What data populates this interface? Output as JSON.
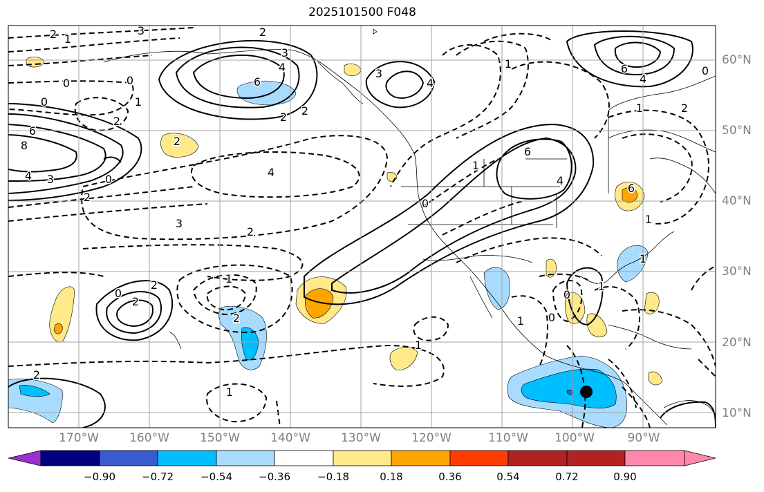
{
  "title": "2025101500 F048",
  "lat_labels": [
    "60°N",
    "50°N",
    "40°N",
    "30°N",
    "20°N",
    "10°N"
  ],
  "lon_labels": [
    "170°W",
    "160°W",
    "150°W",
    "140°W",
    "130°W",
    "120°W",
    "110°W",
    "100°W",
    "90°W"
  ],
  "colorbar": {
    "tick_labels": [
      "−0.90",
      "−0.72",
      "−0.54",
      "−0.36",
      "−0.18",
      "0.18",
      "0.36",
      "0.54",
      "0.72",
      "0.90"
    ],
    "colors": [
      "#9b30d0",
      "#000080",
      "#3a5bcd",
      "#00bfff",
      "#a8dcff",
      "#ffffff",
      "#ffe98a",
      "#ffa500",
      "#ff3d00",
      "#b22222",
      "#ff88aa"
    ]
  },
  "contour_labels": [
    "2",
    "1",
    "3",
    "2",
    "0",
    "0",
    "6",
    "2",
    "2",
    "3",
    "4",
    "3",
    "4",
    "1",
    "0",
    "2",
    "6",
    "8",
    "4",
    "3",
    "2",
    "0",
    "2",
    "4",
    "3",
    "2",
    "1",
    "2",
    "2",
    "0",
    "2",
    "2",
    "6",
    "1",
    "0",
    "6",
    "1",
    "1",
    "1",
    "1",
    "1",
    "0",
    "0",
    "1",
    "4",
    "6",
    "0",
    "1",
    "2",
    "1",
    "4"
  ],
  "chart_data": {
    "type": "map",
    "title": "2025101500 F048",
    "lat_range": [
      8,
      65
    ],
    "lon_range": [
      -180,
      -80
    ],
    "filled_field_levels": [
      -0.9,
      -0.72,
      -0.54,
      -0.36,
      -0.18,
      0.18,
      0.36,
      0.54,
      0.72,
      0.9
    ],
    "marker": {
      "type": "black dot",
      "lon": -99,
      "lat": 12.5
    }
  }
}
